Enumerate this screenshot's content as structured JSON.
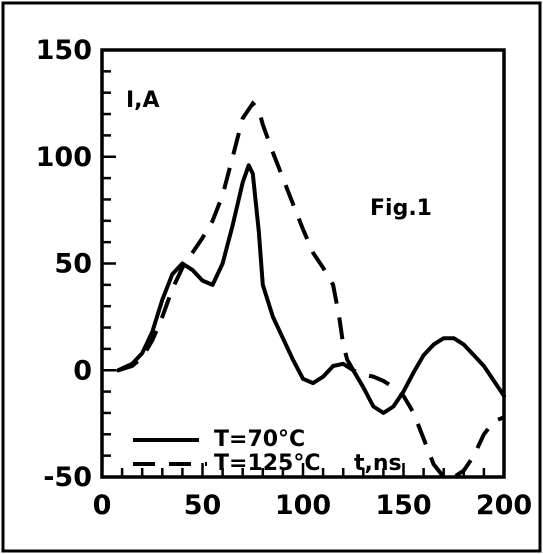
{
  "chart_data": {
    "type": "line",
    "title": "Fig.1",
    "ylabel": "I,A",
    "xlabel": "t,ns",
    "xlim": [
      0,
      200
    ],
    "ylim": [
      -50,
      150
    ],
    "x_ticks": [
      0,
      50,
      100,
      150,
      200
    ],
    "y_ticks": [
      -50,
      0,
      50,
      100,
      150
    ],
    "x_tick_labels": [
      "0",
      "50",
      "100",
      "150",
      "200"
    ],
    "y_tick_labels": [
      "-50",
      "0",
      "50",
      "100",
      "150"
    ],
    "legend_position": "bottom-left",
    "series": [
      {
        "name": "T=70°C",
        "style": "solid",
        "color": "#000000",
        "x": [
          8,
          15,
          20,
          25,
          30,
          35,
          40,
          45,
          50,
          55,
          60,
          65,
          70,
          73,
          75,
          78,
          80,
          85,
          90,
          95,
          100,
          105,
          110,
          115,
          120,
          125,
          130,
          135,
          140,
          145,
          150,
          155,
          160,
          165,
          170,
          175,
          180,
          185,
          190,
          195,
          200
        ],
        "y": [
          0,
          3,
          8,
          18,
          33,
          45,
          50,
          47,
          42,
          40,
          50,
          68,
          88,
          96,
          92,
          65,
          40,
          25,
          15,
          5,
          -4,
          -6,
          -3,
          2,
          3,
          0,
          -8,
          -17,
          -20,
          -17,
          -10,
          -1,
          7,
          12,
          15,
          15,
          12,
          7,
          2,
          -5,
          -12
        ]
      },
      {
        "name": "T=125°C",
        "style": "dashed",
        "color": "#000000",
        "x": [
          8,
          15,
          20,
          25,
          30,
          35,
          40,
          45,
          50,
          55,
          60,
          65,
          70,
          75,
          78,
          80,
          85,
          90,
          95,
          100,
          105,
          110,
          115,
          118,
          120,
          122,
          125,
          130,
          135,
          140,
          145,
          150,
          155,
          160,
          165,
          170,
          175,
          180,
          185,
          190,
          195,
          200
        ],
        "y": [
          0,
          2,
          6,
          14,
          25,
          38,
          48,
          55,
          62,
          70,
          82,
          100,
          118,
          125,
          122,
          115,
          102,
          90,
          78,
          66,
          55,
          48,
          40,
          25,
          12,
          5,
          0,
          -2,
          -3,
          -5,
          -8,
          -12,
          -20,
          -32,
          -44,
          -50,
          -50,
          -47,
          -40,
          -30,
          -24,
          -22
        ]
      }
    ]
  },
  "labels": {
    "ylabel": "I,A",
    "fig": "Fig.1",
    "xlabel": "t,ns",
    "legend_70": "T=70°C",
    "legend_125": "T=125°C"
  }
}
